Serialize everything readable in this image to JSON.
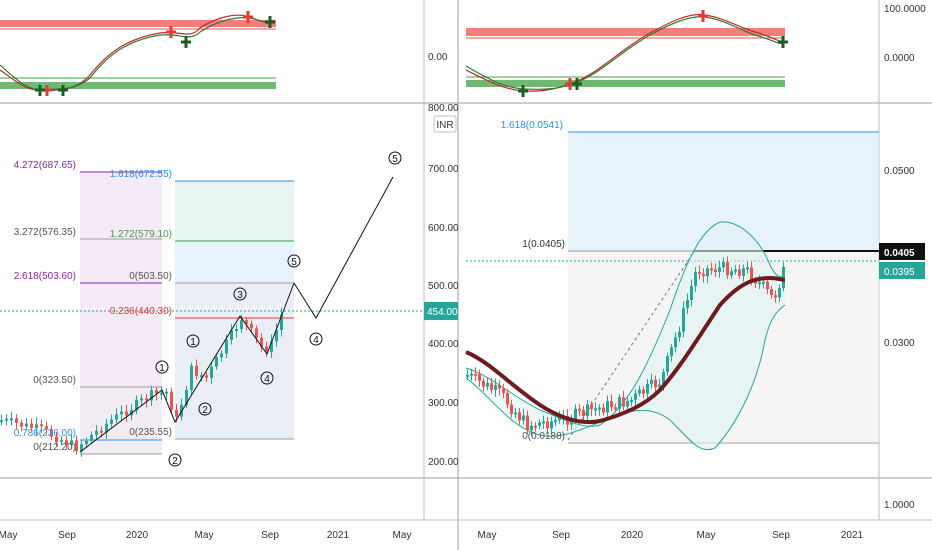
{
  "left_panel": {
    "osc_axis_label": "0.00",
    "price_ticks": [
      "800.00",
      "700.00",
      "600.00",
      "500.00",
      "400.00",
      "300.00",
      "200.00"
    ],
    "currency_badge": "INR",
    "current_price": "454.00",
    "x_labels": [
      "May",
      "Sep",
      "2020",
      "May",
      "Sep",
      "2021",
      "May"
    ],
    "fib_labels": [
      {
        "text": "4.272(687.65)",
        "color": "#8e24aa"
      },
      {
        "text": "3.272(576.35)",
        "color": "#555555"
      },
      {
        "text": "2.618(503.60)",
        "color": "#8e24aa"
      },
      {
        "text": "0(323.50)",
        "color": "#555555"
      },
      {
        "text": "0.786(236.00)",
        "color": "#2196f3"
      },
      {
        "text": "0(212.20)",
        "color": "#555555"
      },
      {
        "text": "1.618(672.55)",
        "color": "#2196f3"
      },
      {
        "text": "1.272(579.10)",
        "color": "#43a047"
      },
      {
        "text": "0(503.50)",
        "color": "#555555"
      },
      {
        "text": "0.236(440.30)",
        "color": "#e53935"
      },
      {
        "text": "0(235.55)",
        "color": "#555555"
      }
    ],
    "wave_labels": [
      "1",
      "2",
      "1",
      "2",
      "3",
      "4",
      "5",
      "4",
      "5"
    ]
  },
  "right_panel": {
    "osc_axis_labels": [
      "100.0000",
      "0.0000"
    ],
    "price_ticks": [
      "0.0500",
      "0.0300",
      "1.0000"
    ],
    "current_badge_black": "0.0405",
    "current_badge_teal": "0.0395",
    "x_labels": [
      "May",
      "Sep",
      "2020",
      "May",
      "Sep",
      "2021"
    ],
    "fib_labels": [
      {
        "text": "1.618(0.0541)",
        "color": "#2196f3"
      },
      {
        "text": "1(0.0405)",
        "color": "#333333"
      },
      {
        "text": "0(0.0188)",
        "color": "#555555"
      }
    ]
  },
  "chart_data": [
    {
      "type": "line",
      "title": "",
      "price_axis_range": [
        160,
        800
      ],
      "price_ticks": [
        200,
        300,
        400,
        500,
        600,
        700,
        800
      ],
      "current_price": 454.0,
      "series": [
        {
          "x": [
            "2019-05",
            "2019-07",
            "2019-09",
            "2019-11",
            "2020-01",
            "2020-03",
            "2020-04",
            "2020-05",
            "2020-06",
            "2020-07",
            "2020-08",
            "2020-09"
          ],
          "values": [
            270,
            255,
            220,
            250,
            300,
            310,
            240,
            350,
            370,
            420,
            380,
            454
          ]
        }
      ],
      "projection": [
        {
          "label": "3",
          "value": 440
        },
        {
          "label": "5",
          "value": 503
        },
        {
          "label": "4",
          "value": 440
        },
        {
          "label": "5",
          "value": 680
        }
      ]
    },
    {
      "type": "line",
      "title": "",
      "price_ticks": [
        0.05,
        0.03,
        1.0
      ],
      "current_price": 0.0395,
      "fib_levels": [
        0.0541,
        0.0405,
        0.0188
      ]
    }
  ]
}
